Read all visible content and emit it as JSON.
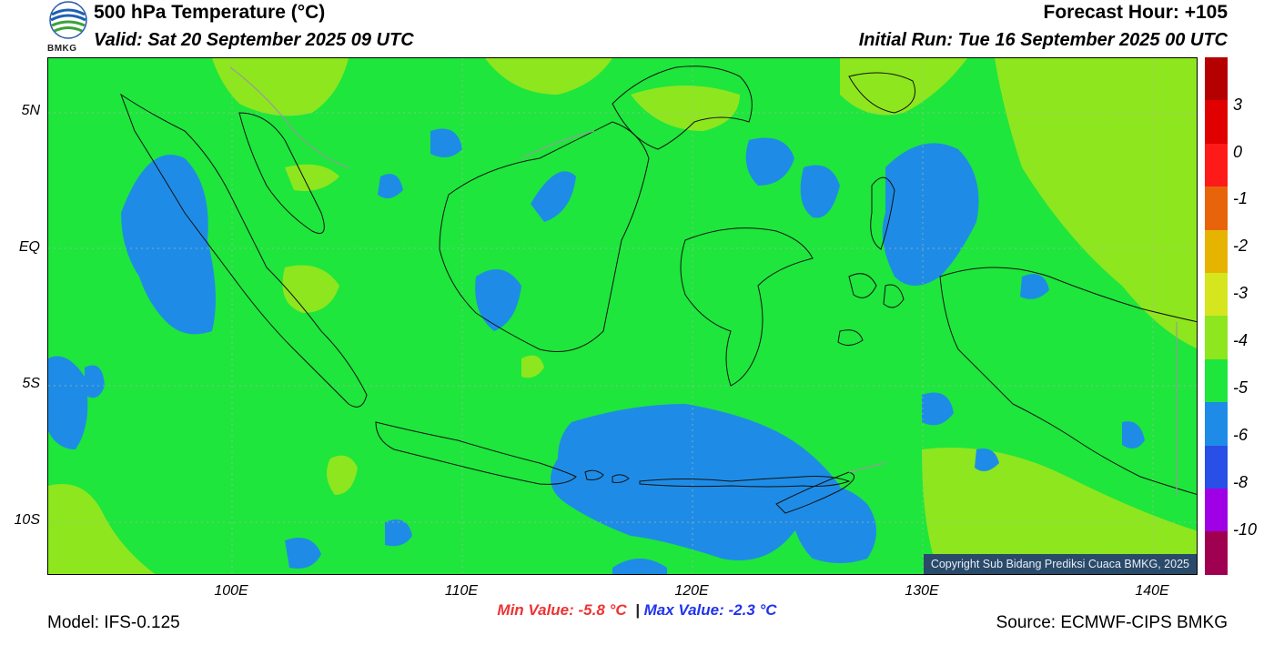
{
  "header": {
    "title": "500 hPa Temperature (°C)",
    "valid": "Valid: Sat 20 September 2025 09 UTC",
    "forecast_hour": "Forecast Hour: +105",
    "initial_run": "Initial Run: Tue 16 September 2025 00 UTC",
    "logo_text": "BMKG"
  },
  "axes": {
    "y_ticks": [
      "5N",
      "EQ",
      "5S",
      "10S"
    ],
    "x_ticks": [
      "100E",
      "110E",
      "120E",
      "130E",
      "140E"
    ],
    "lon_range": [
      92,
      142
    ],
    "lat_range": [
      -12.2,
      6.2
    ]
  },
  "colorbar": {
    "labels": [
      "3",
      "0",
      "-1",
      "-2",
      "-3",
      "-4",
      "-5",
      "-6",
      "-8",
      "-10"
    ],
    "colors": [
      "#b40000",
      "#e00000",
      "#ff1a1a",
      "#e8640a",
      "#e6b400",
      "#d6e61e",
      "#8ee61e",
      "#1ee63c",
      "#1e8ce6",
      "#2850e6",
      "#a000e6",
      "#a00050"
    ]
  },
  "palette": {
    "ocean_green": "#1ee63c",
    "warm_green": "#8ee61e",
    "cool_blue": "#1e8ce6",
    "coast_line": "#111111",
    "border_gray": "#9a9a9a"
  },
  "stats": {
    "min_label": "Min Value: -5.8 °C",
    "separator": "|",
    "max_label": "Max Value: -2.3 °C"
  },
  "footer": {
    "model": "Model: IFS-0.125",
    "source": "Source: ECMWF-CIPS BMKG",
    "copyright": "Copyright Sub Bidang Prediksi Cuaca BMKG, 2025"
  }
}
